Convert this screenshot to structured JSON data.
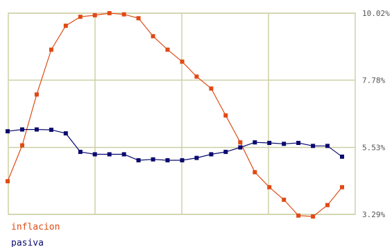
{
  "chart_data": {
    "type": "line",
    "title": "",
    "xlabel": "",
    "ylabel": "",
    "ylim": [
      3.29,
      10.02
    ],
    "y_ticks": [
      3.29,
      5.53,
      7.78,
      10.02
    ],
    "y_tick_labels": [
      "3.29%",
      "5.53%",
      "7.78%",
      "10.02%"
    ],
    "y_axis_position": "right",
    "vertical_gridlines": 4,
    "grid": true,
    "legend_position": "bottom-left",
    "x": [
      1,
      2,
      3,
      4,
      5,
      6,
      7,
      8,
      9,
      10,
      11,
      12,
      13,
      14,
      15,
      16,
      17,
      18,
      19,
      20,
      21,
      22,
      23,
      24
    ],
    "series": [
      {
        "name": "inflacion",
        "color": "#e04a14",
        "values": [
          4.4,
          5.6,
          7.3,
          8.8,
          9.6,
          9.9,
          9.95,
          10.02,
          9.98,
          9.85,
          9.25,
          8.8,
          8.4,
          7.9,
          7.5,
          6.6,
          5.7,
          4.7,
          4.2,
          3.78,
          3.25,
          3.22,
          3.6,
          4.2
        ]
      },
      {
        "name": "pasiva",
        "color": "#0a0a6e",
        "values": [
          6.07,
          6.13,
          6.13,
          6.12,
          6.0,
          5.38,
          5.3,
          5.3,
          5.3,
          5.1,
          5.13,
          5.1,
          5.1,
          5.18,
          5.3,
          5.38,
          5.53,
          5.7,
          5.68,
          5.65,
          5.68,
          5.58,
          5.58,
          5.22
        ]
      }
    ]
  }
}
